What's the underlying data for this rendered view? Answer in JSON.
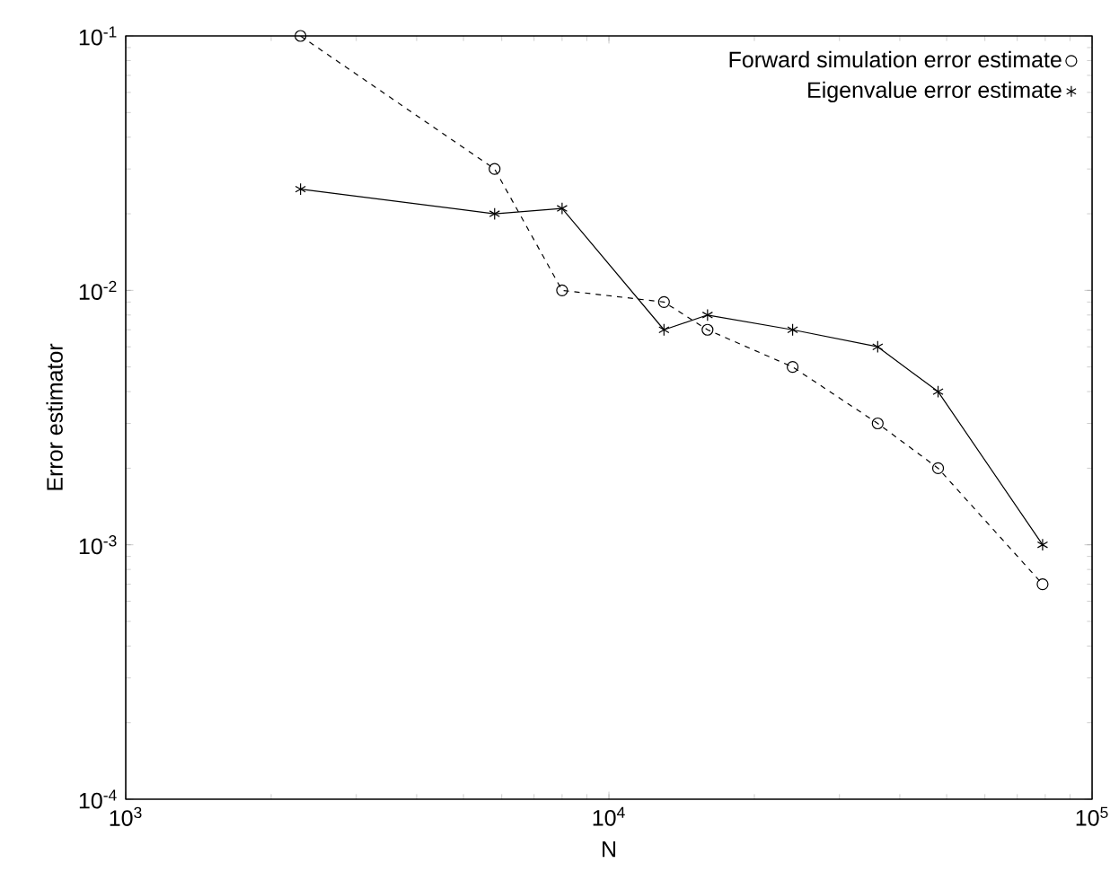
{
  "chart_data": {
    "type": "line",
    "xlabel": "N",
    "ylabel": "Error estimator",
    "log": "xy",
    "grid": false,
    "legend": "top right",
    "xlim": [
      1000,
      100000
    ],
    "ylim": [
      0.0001,
      0.1
    ],
    "xticks": [
      {
        "value": 1000,
        "label": "10$^{3}$"
      },
      {
        "value": 10000,
        "label": "10$^{4}$"
      },
      {
        "value": 100000,
        "label": "10$^{5}$"
      }
    ],
    "yticks": [
      {
        "value": 0.0001,
        "label": "10$^{-4}$"
      },
      {
        "value": 0.001,
        "label": "10$^{-3}$"
      },
      {
        "value": 0.01,
        "label": "10$^{-2}$"
      },
      {
        "value": 0.1,
        "label": "10$^{-1}$"
      }
    ],
    "x": [
      2300,
      5800,
      8000,
      13000,
      16000,
      24000,
      36000,
      48000,
      79000
    ],
    "series": [
      {
        "name": "Forward simulation error estimate",
        "color": "#000000",
        "marker": "circle",
        "line_style": "dashed",
        "values": [
          0.1,
          0.03,
          0.01,
          0.009,
          0.007,
          0.005,
          0.003,
          0.002,
          0.0007
        ]
      },
      {
        "name": "Eigenvalue error estimate",
        "color": "#000000",
        "marker": "cross",
        "line_style": "solid",
        "values": [
          0.025,
          0.02,
          0.021,
          0.007,
          0.008,
          0.007,
          0.006,
          0.004,
          0.001
        ]
      }
    ]
  }
}
